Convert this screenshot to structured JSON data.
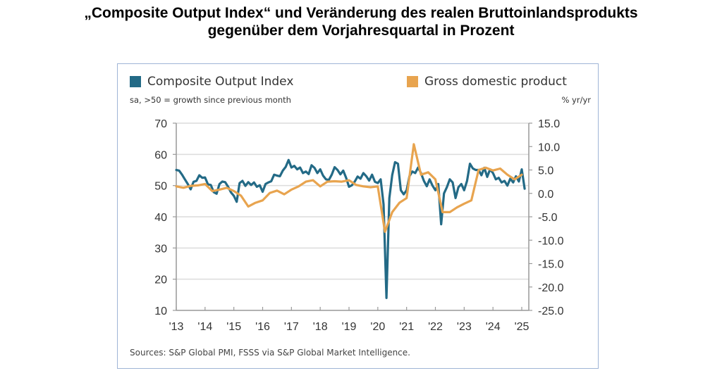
{
  "page": {
    "title_line1": "„Composite Output Index“ und Veränderung des realen Bruttoinlandsprodukts",
    "title_line2": "gegenüber dem Vorjahresquartal in Prozent"
  },
  "chart_data": {
    "type": "line",
    "title": "„Composite Output Index“ und Veränderung des realen Bruttoinlandsprodukts gegenüber dem Vorjahresquartal in Prozent",
    "legend": [
      {
        "name": "Composite Output Index",
        "color": "#236a86",
        "subtitle": "sa, >50 = growth since previous month",
        "axis": "left"
      },
      {
        "name": "Gross domestic product",
        "color": "#e8a44f",
        "subtitle": "% yr/yr",
        "axis": "right"
      }
    ],
    "legend_placement": "top",
    "source": "Sources: S&P Global PMI, FSSS via S&P Global Market Intelligence.",
    "x_ticks": [
      "'13",
      "'14",
      "'15",
      "'16",
      "'17",
      "'18",
      "'19",
      "'20",
      "'21",
      "'22",
      "'23",
      "'24",
      "'25"
    ],
    "x_range": [
      2013,
      2025.2
    ],
    "y_left": {
      "ticks": [
        "70",
        "60",
        "50",
        "40",
        "30",
        "20",
        "10"
      ],
      "range": [
        10,
        70
      ]
    },
    "y_right": {
      "ticks": [
        "15.0",
        "10.0",
        "5.0",
        "0.0",
        "-5.0",
        "-10.0",
        "-15.0",
        "-20.0",
        "-25.0"
      ],
      "range": [
        -25,
        15
      ]
    },
    "grid": true,
    "series": [
      {
        "name": "Composite Output Index",
        "axis": "left",
        "x": [
          2013.0,
          2013.1,
          2013.2,
          2013.3,
          2013.4,
          2013.5,
          2013.6,
          2013.7,
          2013.8,
          2013.9,
          2014.0,
          2014.1,
          2014.2,
          2014.3,
          2014.4,
          2014.5,
          2014.6,
          2014.7,
          2014.8,
          2014.9,
          2015.0,
          2015.1,
          2015.2,
          2015.3,
          2015.4,
          2015.5,
          2015.6,
          2015.7,
          2015.8,
          2015.9,
          2016.0,
          2016.1,
          2016.2,
          2016.3,
          2016.4,
          2016.5,
          2016.6,
          2016.7,
          2016.8,
          2016.9,
          2017.0,
          2017.1,
          2017.2,
          2017.3,
          2017.4,
          2017.5,
          2017.6,
          2017.7,
          2017.8,
          2017.9,
          2018.0,
          2018.1,
          2018.2,
          2018.3,
          2018.4,
          2018.5,
          2018.6,
          2018.7,
          2018.8,
          2018.9,
          2019.0,
          2019.1,
          2019.2,
          2019.3,
          2019.4,
          2019.5,
          2019.6,
          2019.7,
          2019.8,
          2019.9,
          2020.0,
          2020.1,
          2020.2,
          2020.3,
          2020.4,
          2020.5,
          2020.6,
          2020.7,
          2020.8,
          2020.9,
          2021.0,
          2021.1,
          2021.2,
          2021.3,
          2021.4,
          2021.5,
          2021.6,
          2021.7,
          2021.8,
          2021.9,
          2022.0,
          2022.1,
          2022.2,
          2022.3,
          2022.4,
          2022.5,
          2022.6,
          2022.7,
          2022.8,
          2022.9,
          2023.0,
          2023.1,
          2023.2,
          2023.3,
          2023.4,
          2023.5,
          2023.6,
          2023.7,
          2023.8,
          2023.9,
          2024.0,
          2024.1,
          2024.2,
          2024.3,
          2024.4,
          2024.5,
          2024.6,
          2024.7,
          2024.8,
          2024.9,
          2025.0,
          2025.1
        ],
        "values": [
          55.0,
          54.8,
          53.5,
          52.0,
          50.5,
          48.8,
          51.2,
          51.5,
          53.3,
          52.5,
          52.6,
          50.4,
          50.2,
          47.9,
          47.4,
          50.5,
          51.3,
          51.1,
          49.6,
          47.8,
          46.7,
          44.8,
          50.8,
          51.5,
          49.9,
          51.1,
          50.2,
          51.0,
          49.6,
          50.1,
          48.0,
          50.5,
          51.0,
          51.4,
          53.5,
          53.2,
          53.0,
          54.8,
          56.0,
          58.2,
          55.8,
          56.3,
          55.2,
          55.8,
          54.0,
          54.5,
          53.7,
          56.5,
          55.7,
          54.0,
          55.2,
          53.2,
          52.0,
          51.8,
          53.5,
          55.9,
          55.0,
          53.6,
          54.8,
          52.5,
          49.6,
          50.1,
          51.3,
          52.9,
          52.2,
          54.0,
          53.0,
          51.6,
          53.5,
          51.2,
          50.8,
          52.0,
          44.0,
          14.0,
          46.0,
          53.4,
          57.5,
          57.0,
          48.5,
          47.2,
          48.5,
          53.0,
          54.5,
          54.0,
          55.8,
          54.0,
          51.5,
          49.8,
          52.0,
          50.0,
          48.5,
          50.5,
          37.6,
          47.5,
          49.5,
          52.0,
          51.0,
          46.0,
          49.5,
          50.5,
          48.5,
          51.5,
          57.0,
          55.5,
          55.0,
          55.0,
          53.3,
          55.7,
          52.8,
          55.2,
          54.0,
          52.0,
          52.5,
          51.0,
          51.5,
          50.0,
          52.2,
          51.0,
          53.0,
          51.3,
          55.2,
          49.0
        ]
      },
      {
        "name": "Gross domestic product",
        "axis": "right",
        "x": [
          2013.0,
          2013.25,
          2013.5,
          2013.75,
          2014.0,
          2014.25,
          2014.5,
          2014.75,
          2015.0,
          2015.25,
          2015.5,
          2015.75,
          2016.0,
          2016.25,
          2016.5,
          2016.75,
          2017.0,
          2017.25,
          2017.5,
          2017.75,
          2018.0,
          2018.25,
          2018.5,
          2018.75,
          2019.0,
          2019.25,
          2019.5,
          2019.75,
          2020.0,
          2020.25,
          2020.5,
          2020.75,
          2021.0,
          2021.25,
          2021.5,
          2021.75,
          2022.0,
          2022.25,
          2022.5,
          2022.75,
          2023.0,
          2023.25,
          2023.5,
          2023.75,
          2024.0,
          2024.25,
          2024.5,
          2024.75,
          2025.0
        ],
        "values": [
          1.5,
          1.2,
          1.6,
          1.7,
          2.0,
          0.5,
          0.8,
          1.2,
          0.5,
          -0.5,
          -2.8,
          -2.0,
          -1.5,
          0.1,
          0.6,
          -0.2,
          0.8,
          1.5,
          2.5,
          2.8,
          1.5,
          2.5,
          2.6,
          2.5,
          2.8,
          1.8,
          1.5,
          1.3,
          1.5,
          -8.2,
          -4.0,
          -2.0,
          -1.0,
          10.5,
          4.0,
          4.5,
          3.0,
          -4.0,
          -4.0,
          -3.0,
          -2.2,
          -1.5,
          5.0,
          5.5,
          4.9,
          5.3,
          4.0,
          3.0,
          4.0
        ]
      }
    ]
  }
}
